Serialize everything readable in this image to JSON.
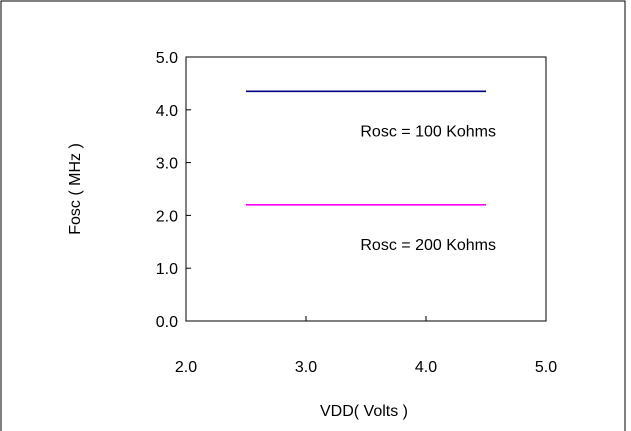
{
  "chart_data": {
    "type": "line",
    "xlabel": "VDD( Volts )",
    "ylabel": "Fosc ( MHz )",
    "xlim": [
      2.0,
      5.0
    ],
    "ylim": [
      0.0,
      5.0
    ],
    "x_ticks": [
      "2.0",
      "3.0",
      "4.0",
      "5.0"
    ],
    "y_ticks": [
      "0.0",
      "1.0",
      "2.0",
      "3.0",
      "4.0",
      "5.0"
    ],
    "grid": false,
    "legend": "none",
    "series": [
      {
        "name": "Rosc = 100 Kohms",
        "x": [
          2.5,
          4.5
        ],
        "y": [
          4.35,
          4.35
        ],
        "color": "#000080"
      },
      {
        "name": "Rosc = 200 Kohms",
        "x": [
          2.5,
          4.5
        ],
        "y": [
          2.2,
          2.2
        ],
        "color": "#ff00ff"
      }
    ]
  }
}
